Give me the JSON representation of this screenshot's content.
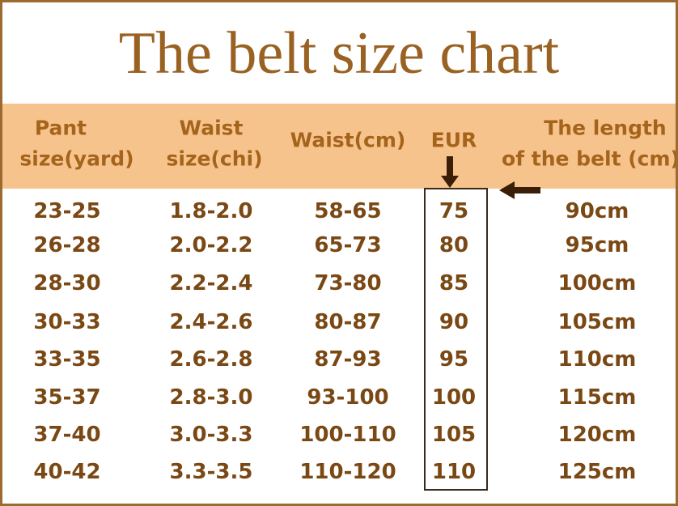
{
  "title": "The belt size chart",
  "table": {
    "headers": [
      [
        "Pant",
        "size(yard)"
      ],
      [
        "Waist",
        "size(chi)"
      ],
      [
        "Waist(cm)"
      ],
      [
        "EUR"
      ],
      [
        "The length",
        "of the belt (cm)"
      ]
    ],
    "rows": [
      [
        "23-25",
        "1.8-2.0",
        "58-65",
        "75",
        "90cm"
      ],
      [
        "26-28",
        "2.0-2.2",
        "65-73",
        "80",
        "95cm"
      ],
      [
        "28-30",
        "2.2-2.4",
        "73-80",
        "85",
        "100cm"
      ],
      [
        "30-33",
        "2.4-2.6",
        "80-87",
        "90",
        "105cm"
      ],
      [
        "33-35",
        "2.6-2.8",
        "87-93",
        "95",
        "110cm"
      ],
      [
        "35-37",
        "2.8-3.0",
        "93-100",
        "100",
        "115cm"
      ],
      [
        "37-40",
        "3.0-3.3",
        "100-110",
        "105",
        "120cm"
      ],
      [
        "40-42",
        "3.3-3.5",
        "110-120",
        "110",
        "125cm"
      ]
    ]
  }
}
